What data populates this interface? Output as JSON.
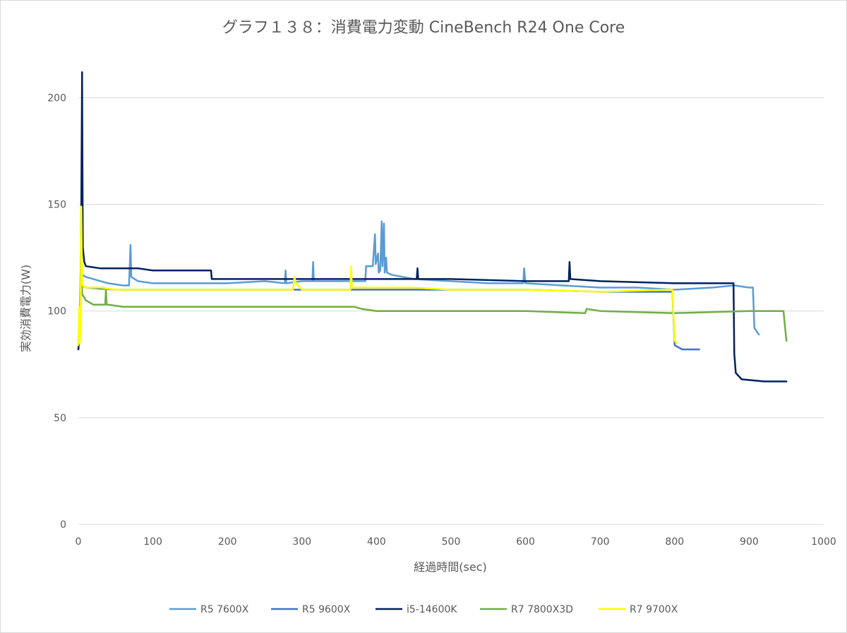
{
  "chart_data": {
    "type": "line",
    "title": "グラフ１３８：消費電力変動 CineBench R24 One Core",
    "xlabel": "経過時間(sec)",
    "ylabel": "実効消費電力(W)",
    "xlim": [
      0,
      1000
    ],
    "ylim": [
      0,
      220
    ],
    "x_ticks": [
      0,
      100,
      200,
      300,
      400,
      500,
      600,
      700,
      800,
      900,
      1000
    ],
    "y_ticks": [
      0,
      50,
      100,
      150,
      200
    ],
    "x_tick_labels": [
      "0",
      "100",
      "200",
      "300",
      "400",
      "500",
      "600",
      "700",
      "800",
      "900",
      "1000"
    ],
    "y_tick_labels": [
      "0",
      "50",
      "100",
      "150",
      "200"
    ],
    "grid": "horizontal",
    "legend_position": "bottom",
    "series": [
      {
        "name": "R5 7600X",
        "color": "#5B9BD5",
        "points": [
          [
            0,
            85
          ],
          [
            2,
            95
          ],
          [
            4,
            120
          ],
          [
            5,
            117
          ],
          [
            10,
            116
          ],
          [
            20,
            115
          ],
          [
            40,
            113
          ],
          [
            60,
            112
          ],
          [
            68,
            112
          ],
          [
            70,
            131
          ],
          [
            71,
            116
          ],
          [
            80,
            114
          ],
          [
            100,
            113
          ],
          [
            150,
            113
          ],
          [
            200,
            113
          ],
          [
            250,
            114
          ],
          [
            277,
            113
          ],
          [
            278,
            119
          ],
          [
            279,
            113
          ],
          [
            300,
            114
          ],
          [
            314,
            114
          ],
          [
            315,
            123
          ],
          [
            316,
            114
          ],
          [
            350,
            114
          ],
          [
            385,
            114
          ],
          [
            386,
            121
          ],
          [
            395,
            121
          ],
          [
            398,
            136
          ],
          [
            399,
            122
          ],
          [
            402,
            127
          ],
          [
            403,
            118
          ],
          [
            405,
            119
          ],
          [
            407,
            142
          ],
          [
            408,
            121
          ],
          [
            410,
            141
          ],
          [
            411,
            118
          ],
          [
            413,
            125
          ],
          [
            414,
            118
          ],
          [
            420,
            117
          ],
          [
            450,
            115
          ],
          [
            500,
            114
          ],
          [
            550,
            113
          ],
          [
            597,
            113
          ],
          [
            598,
            120
          ],
          [
            600,
            113
          ],
          [
            650,
            112
          ],
          [
            700,
            111
          ],
          [
            750,
            111
          ],
          [
            800,
            110
          ],
          [
            850,
            111
          ],
          [
            880,
            112
          ],
          [
            900,
            111
          ],
          [
            905,
            111
          ],
          [
            907,
            92
          ],
          [
            913,
            89
          ]
        ]
      },
      {
        "name": "R5 9600X",
        "color": "#4472C4",
        "points": [
          [
            0,
            82
          ],
          [
            2,
            93
          ],
          [
            4,
            125
          ],
          [
            5,
            112
          ],
          [
            10,
            111
          ],
          [
            50,
            110
          ],
          [
            100,
            110
          ],
          [
            200,
            110
          ],
          [
            300,
            110
          ],
          [
            400,
            110
          ],
          [
            500,
            110
          ],
          [
            600,
            110
          ],
          [
            700,
            109
          ],
          [
            750,
            109
          ],
          [
            797,
            109
          ],
          [
            800,
            84
          ],
          [
            810,
            82
          ],
          [
            833,
            82
          ]
        ]
      },
      {
        "name": "i5-14600K",
        "color": "#002060",
        "points": [
          [
            0,
            82
          ],
          [
            3,
            95
          ],
          [
            5,
            212
          ],
          [
            6,
            130
          ],
          [
            8,
            123
          ],
          [
            10,
            121
          ],
          [
            30,
            120
          ],
          [
            50,
            120
          ],
          [
            80,
            120
          ],
          [
            100,
            119
          ],
          [
            130,
            119
          ],
          [
            150,
            119
          ],
          [
            175,
            119
          ],
          [
            178,
            119
          ],
          [
            179,
            115
          ],
          [
            200,
            115
          ],
          [
            300,
            115
          ],
          [
            400,
            115
          ],
          [
            454,
            115
          ],
          [
            455,
            120
          ],
          [
            456,
            115
          ],
          [
            500,
            115
          ],
          [
            600,
            114
          ],
          [
            658,
            114
          ],
          [
            659,
            123
          ],
          [
            660,
            115
          ],
          [
            700,
            114
          ],
          [
            800,
            113
          ],
          [
            850,
            113
          ],
          [
            879,
            113
          ],
          [
            880,
            80
          ],
          [
            882,
            71
          ],
          [
            890,
            68
          ],
          [
            920,
            67
          ],
          [
            950,
            67
          ]
        ]
      },
      {
        "name": "R7 7800X3D",
        "color": "#70AD47",
        "points": [
          [
            0,
            86
          ],
          [
            2,
            95
          ],
          [
            4,
            140
          ],
          [
            5,
            108
          ],
          [
            10,
            105
          ],
          [
            20,
            103
          ],
          [
            36,
            103
          ],
          [
            37,
            110
          ],
          [
            38,
            103
          ],
          [
            40,
            103
          ],
          [
            60,
            102
          ],
          [
            100,
            102
          ],
          [
            200,
            102
          ],
          [
            300,
            102
          ],
          [
            350,
            102
          ],
          [
            370,
            102
          ],
          [
            380,
            101
          ],
          [
            400,
            100
          ],
          [
            500,
            100
          ],
          [
            600,
            100
          ],
          [
            680,
            99
          ],
          [
            682,
            101
          ],
          [
            700,
            100
          ],
          [
            800,
            99
          ],
          [
            900,
            100
          ],
          [
            945,
            100
          ],
          [
            946,
            100
          ],
          [
            950,
            86
          ]
        ]
      },
      {
        "name": "R7 9700X",
        "color": "#FFFF00",
        "points": [
          [
            0,
            84
          ],
          [
            1,
            102
          ],
          [
            2,
            85
          ],
          [
            3,
            95
          ],
          [
            4,
            149
          ],
          [
            5,
            113
          ],
          [
            6,
            112
          ],
          [
            10,
            111
          ],
          [
            30,
            111
          ],
          [
            50,
            110
          ],
          [
            100,
            110
          ],
          [
            200,
            110
          ],
          [
            288,
            110
          ],
          [
            290,
            116
          ],
          [
            292,
            113
          ],
          [
            300,
            110
          ],
          [
            365,
            110
          ],
          [
            366,
            121
          ],
          [
            367,
            111
          ],
          [
            400,
            111
          ],
          [
            450,
            111
          ],
          [
            500,
            110
          ],
          [
            600,
            110
          ],
          [
            700,
            109
          ],
          [
            790,
            110
          ],
          [
            797,
            110
          ],
          [
            800,
            86
          ],
          [
            803,
            85
          ]
        ]
      }
    ]
  }
}
